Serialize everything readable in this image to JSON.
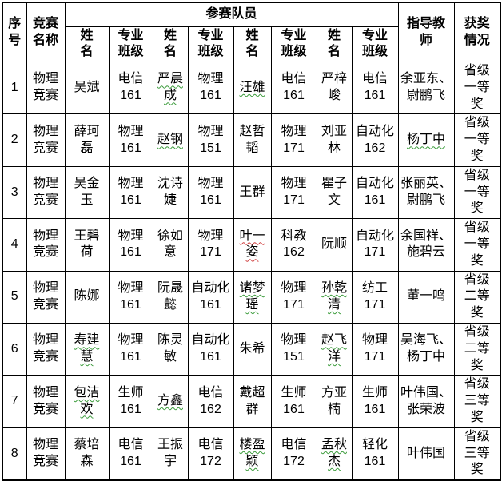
{
  "colors": {
    "border": "#000000",
    "text": "#000000",
    "background": "#ffffff",
    "squiggle_green": "#3a9b3a",
    "squiggle_red": "#d04040"
  },
  "table": {
    "headers": {
      "col_index": "序号",
      "col_competition": "竞赛名称",
      "col_members_group": "参赛队员",
      "col_member_name": "姓名",
      "col_member_class": "专业班级",
      "col_teacher": "指导教师",
      "col_award": "获奖情况"
    },
    "rows": [
      {
        "index": "1",
        "competition": "物理竞赛",
        "members": [
          {
            "name": "吴斌",
            "class": "电信161",
            "mark": "none"
          },
          {
            "name": "严晨成",
            "class": "物理161",
            "mark": "green"
          },
          {
            "name": "汪雄",
            "class": "电信161",
            "mark": "green"
          },
          {
            "name": "严梓峻",
            "class": "电信161",
            "mark": "none"
          }
        ],
        "teachers": "余亚东、尉鹏飞",
        "teacher_mark": "none",
        "award": "省级一等奖"
      },
      {
        "index": "2",
        "competition": "物理竞赛",
        "members": [
          {
            "name": "薛珂磊",
            "class": "物理161",
            "mark": "none"
          },
          {
            "name": "赵钢",
            "class": "物理151",
            "mark": "green"
          },
          {
            "name": "赵哲韬",
            "class": "物理171",
            "mark": "none"
          },
          {
            "name": "刘亚林",
            "class": "自动化162",
            "mark": "none"
          }
        ],
        "teachers": "杨丁中",
        "teacher_mark": "green",
        "award": "省级一等奖"
      },
      {
        "index": "3",
        "competition": "物理竞赛",
        "members": [
          {
            "name": "吴金玉",
            "class": "物理161",
            "mark": "none"
          },
          {
            "name": "沈诗婕",
            "class": "物理161",
            "mark": "none"
          },
          {
            "name": "王群",
            "class": "物理171",
            "mark": "none"
          },
          {
            "name": "瞿子文",
            "class": "自动化161",
            "mark": "none"
          }
        ],
        "teachers": "张丽英、尉鹏飞",
        "teacher_mark": "none",
        "award": "省级一等奖"
      },
      {
        "index": "4",
        "competition": "物理竞赛",
        "members": [
          {
            "name": "王碧荷",
            "class": "物理161",
            "mark": "none"
          },
          {
            "name": "徐如意",
            "class": "物理171",
            "mark": "none"
          },
          {
            "name": "叶一姿",
            "class": "科教162",
            "mark": "red"
          },
          {
            "name": "阮顺",
            "class": "自动化171",
            "mark": "none"
          }
        ],
        "teachers": "余国祥、施碧云",
        "teacher_mark": "none",
        "award": "省级一等奖"
      },
      {
        "index": "5",
        "competition": "物理竞赛",
        "members": [
          {
            "name": "陈娜",
            "class": "物理161",
            "mark": "none"
          },
          {
            "name": "阮晟懿",
            "class": "自动化161",
            "mark": "none"
          },
          {
            "name": "诸梦瑶",
            "class": "物理171",
            "mark": "green"
          },
          {
            "name": "孙乾清",
            "class": "纺工171",
            "mark": "green"
          }
        ],
        "teachers": "董一鸣",
        "teacher_mark": "none",
        "award": "省级二等奖"
      },
      {
        "index": "6",
        "competition": "物理竞赛",
        "members": [
          {
            "name": "寿建慧",
            "class": "物理161",
            "mark": "green"
          },
          {
            "name": "陈灵敏",
            "class": "自动化161",
            "mark": "none"
          },
          {
            "name": "朱希",
            "class": "物理151",
            "mark": "none"
          },
          {
            "name": "赵飞洋",
            "class": "物理171",
            "mark": "green"
          }
        ],
        "teachers": "吴海飞、杨丁中",
        "teacher_mark": "none",
        "award": "省级二等奖"
      },
      {
        "index": "7",
        "competition": "物理竞赛",
        "members": [
          {
            "name": "包洁欢",
            "class": "生师161",
            "mark": "green"
          },
          {
            "name": "方鑫",
            "class": "电信162",
            "mark": "green"
          },
          {
            "name": "戴超群",
            "class": "生师161",
            "mark": "none"
          },
          {
            "name": "方亚楠",
            "class": "生师161",
            "mark": "none"
          }
        ],
        "teachers": "叶伟国、张荣波",
        "teacher_mark": "none",
        "award": "省级三等奖"
      },
      {
        "index": "8",
        "competition": "物理竞赛",
        "members": [
          {
            "name": "蔡培森",
            "class": "电信161",
            "mark": "none"
          },
          {
            "name": "王振宇",
            "class": "电信172",
            "mark": "none"
          },
          {
            "name": "楼盈颖",
            "class": "电信172",
            "mark": "green"
          },
          {
            "name": "孟秋杰",
            "class": "轻化161",
            "mark": "green"
          }
        ],
        "teachers": "叶伟国",
        "teacher_mark": "none",
        "award": "省级三等奖"
      }
    ]
  }
}
